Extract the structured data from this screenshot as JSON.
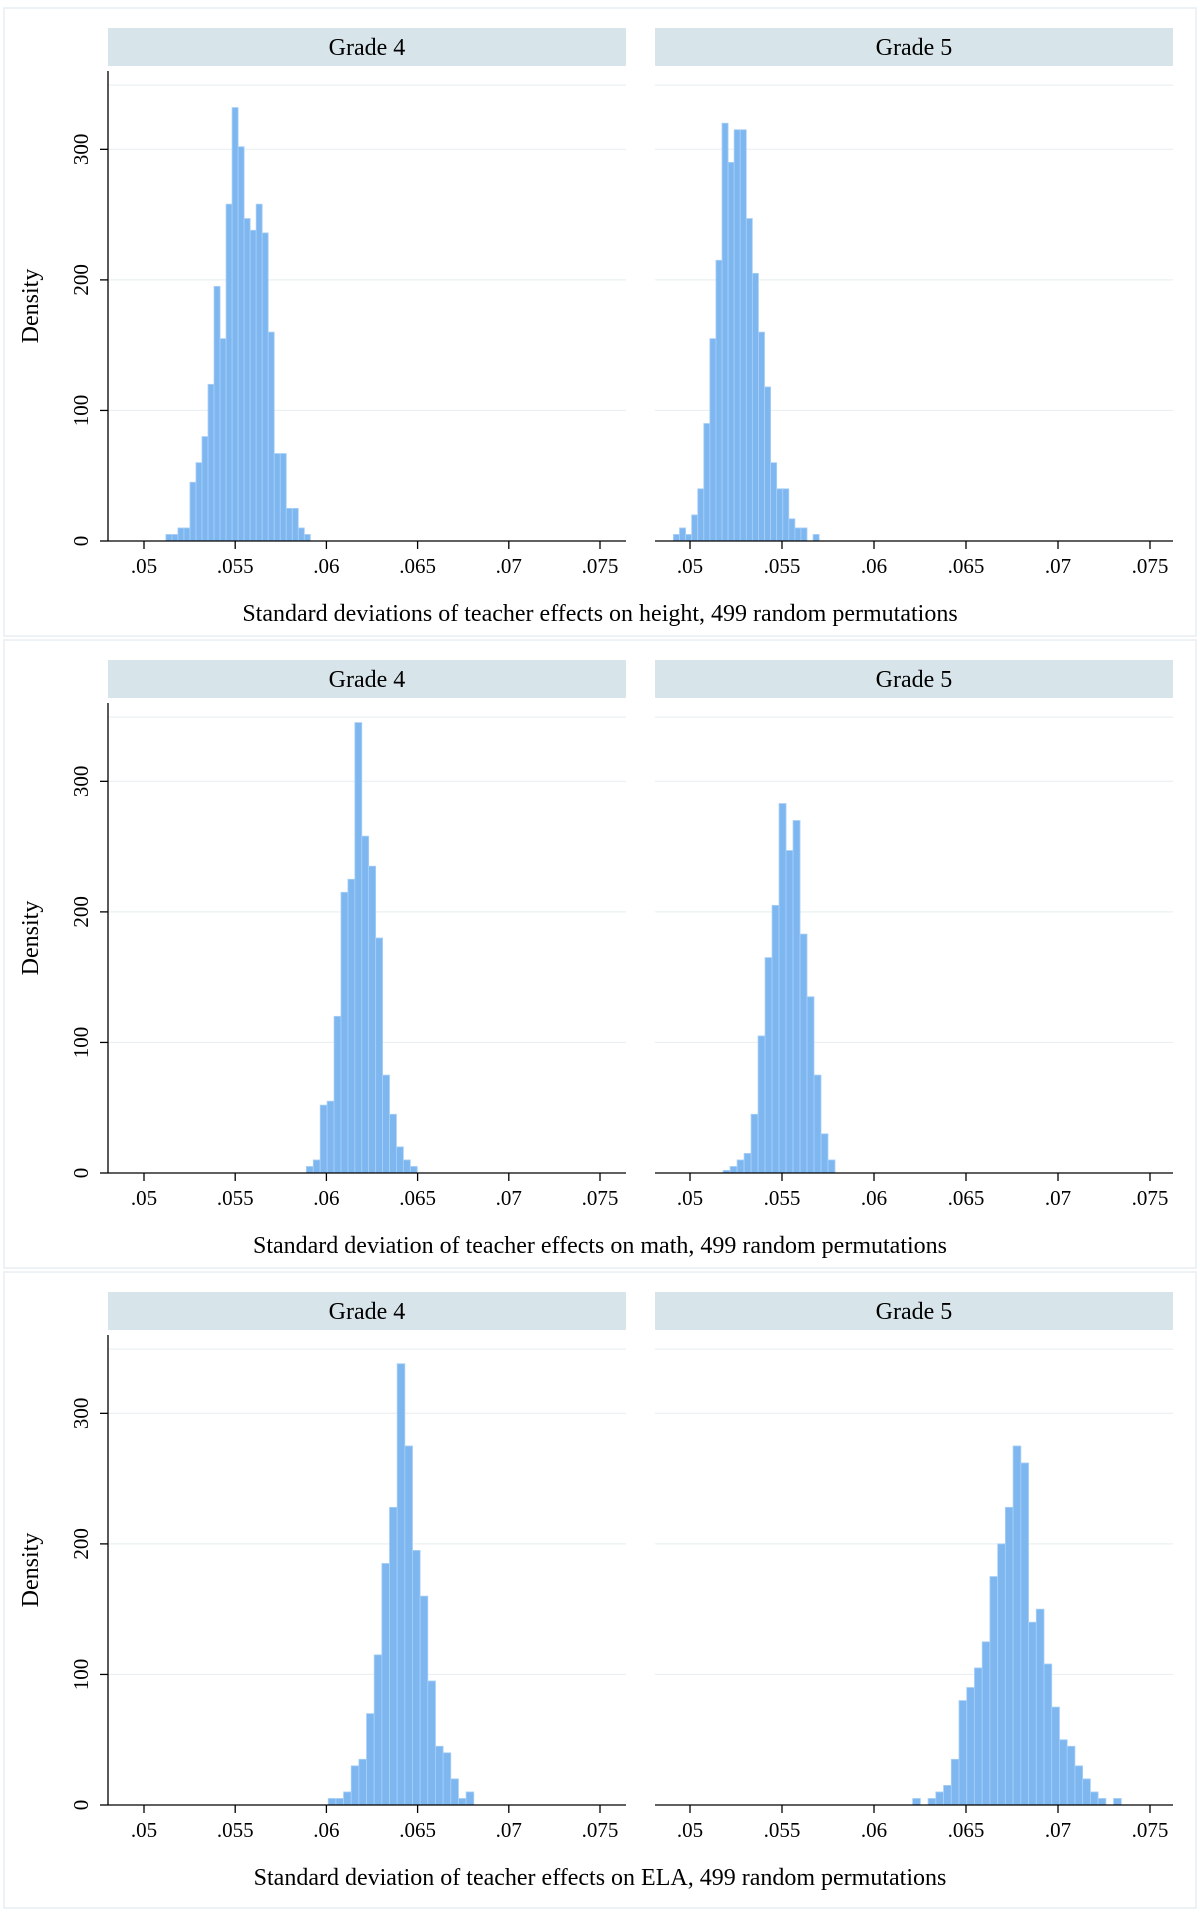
{
  "chart_data": [
    {
      "type": "histogram",
      "title": "Standard deviations of teacher effects on height, 499 random permutations",
      "xlabel": "Standard deviations of teacher effects on height, 499 random permutations",
      "ylabel": "Density",
      "xlim": [
        0.0485,
        0.0755
      ],
      "ylim": [
        0,
        360
      ],
      "bin_width": 0.00033,
      "xticks": [
        0.05,
        0.055,
        0.06,
        0.065,
        0.07,
        0.075
      ],
      "xtick_labels": [
        ".05",
        ".055",
        ".06",
        ".065",
        ".07",
        ".075"
      ],
      "yticks": [
        0,
        100,
        200,
        300
      ],
      "ytick_labels": [
        "0",
        "100",
        "200",
        "300"
      ],
      "panels": [
        {
          "label": "Grade 4",
          "bins_start": 0.0512,
          "values": [
            5,
            5,
            10,
            10,
            45,
            60,
            80,
            120,
            195,
            155,
            258,
            332,
            302,
            247,
            238,
            258,
            236,
            160,
            67,
            67,
            25,
            25,
            10,
            5
          ]
        },
        {
          "label": "Grade 5",
          "bins_start": 0.0491,
          "values": [
            5,
            10,
            5,
            20,
            40,
            90,
            155,
            215,
            320,
            290,
            315,
            315,
            247,
            205,
            160,
            118,
            60,
            40,
            40,
            17,
            10,
            10,
            0,
            5
          ]
        }
      ]
    },
    {
      "type": "histogram",
      "title": "Standard deviation of teacher effects on math, 499 random permutations",
      "xlabel": "Standard deviation of teacher effects on math, 499 random permutations",
      "ylabel": "Density",
      "xlim": [
        0.0485,
        0.0755
      ],
      "ylim": [
        0,
        360
      ],
      "bin_width": 0.00038,
      "xticks": [
        0.05,
        0.055,
        0.06,
        0.065,
        0.07,
        0.075
      ],
      "xtick_labels": [
        ".05",
        ".055",
        ".06",
        ".065",
        ".07",
        ".075"
      ],
      "yticks": [
        0,
        100,
        200,
        300
      ],
      "ytick_labels": [
        "0",
        "100",
        "200",
        "300"
      ],
      "panels": [
        {
          "label": "Grade 4",
          "bins_start": 0.0589,
          "values": [
            5,
            10,
            52,
            55,
            120,
            215,
            225,
            345,
            258,
            235,
            180,
            75,
            45,
            20,
            10,
            5
          ]
        },
        {
          "label": "Grade 5",
          "bins_start": 0.0518,
          "values": [
            2,
            5,
            10,
            15,
            45,
            105,
            165,
            205,
            283,
            247,
            270,
            183,
            135,
            75,
            30,
            10
          ]
        }
      ]
    },
    {
      "type": "histogram",
      "title": "Standard deviation of teacher effects on ELA, 499 random permutations",
      "xlabel": "Standard deviation of teacher effects on ELA, 499 random permutations",
      "ylabel": "Density",
      "xlim": [
        0.0485,
        0.0755
      ],
      "ylim": [
        0,
        360
      ],
      "bin_width": 0.00042,
      "xticks": [
        0.05,
        0.055,
        0.06,
        0.065,
        0.07,
        0.075
      ],
      "xtick_labels": [
        ".05",
        ".055",
        ".06",
        ".065",
        ".07",
        ".075"
      ],
      "yticks": [
        0,
        100,
        200,
        300
      ],
      "ytick_labels": [
        "0",
        "100",
        "200",
        "300"
      ],
      "panels": [
        {
          "label": "Grade 4",
          "bins_start": 0.0601,
          "values": [
            5,
            5,
            10,
            30,
            35,
            70,
            115,
            185,
            228,
            338,
            275,
            195,
            160,
            95,
            45,
            40,
            20,
            5,
            10
          ]
        },
        {
          "label": "Grade 5",
          "bins_start": 0.0621,
          "values": [
            5,
            0,
            5,
            10,
            15,
            35,
            80,
            90,
            105,
            125,
            175,
            200,
            228,
            275,
            262,
            140,
            150,
            108,
            75,
            50,
            45,
            30,
            20,
            10,
            5,
            0,
            5
          ]
        }
      ]
    }
  ]
}
